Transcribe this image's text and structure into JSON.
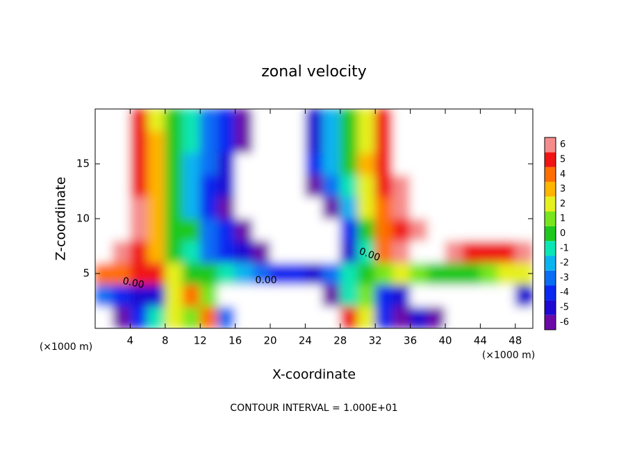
{
  "chart_data": {
    "type": "heatmap",
    "title": "zonal velocity",
    "x_label": "X-coordinate",
    "y_label": "Z-coordinate",
    "x_unit_labels": [
      "(×1000 m)",
      "(×1000 m)"
    ],
    "footnote": "CONTOUR INTERVAL = 1.000E+01",
    "contour_labels": [
      "0.00",
      "0.00",
      "0.00"
    ],
    "xlim": [
      0,
      50
    ],
    "xticks": [
      4,
      8,
      12,
      16,
      20,
      24,
      28,
      32,
      36,
      40,
      44,
      48
    ],
    "ylim": [
      0,
      20
    ],
    "yticks": [
      5,
      10,
      15
    ],
    "x": [
      1,
      3,
      5,
      7,
      9,
      11,
      13,
      15,
      17,
      19,
      21,
      23,
      25,
      27,
      29,
      31,
      33,
      35,
      37,
      39,
      41,
      43,
      45,
      47,
      49
    ],
    "y": [
      1,
      3,
      5,
      7,
      9,
      11,
      13,
      15,
      17,
      19
    ],
    "z": [
      [
        -8,
        -6,
        -4,
        -1,
        2,
        1,
        4,
        -3,
        -8,
        -8,
        -8,
        -8,
        -8,
        -8,
        5,
        2,
        -4,
        -6,
        -5,
        -6,
        -8,
        -8,
        -8,
        -8,
        -8
      ],
      [
        -3,
        -4,
        -5,
        -5,
        2,
        4,
        1,
        -8,
        -8,
        -8,
        -8,
        -8,
        -8,
        -6,
        -1,
        1,
        -4,
        -5,
        -8,
        -8,
        -7,
        -8,
        -8,
        -8,
        -5
      ],
      [
        4,
        4,
        5,
        5,
        2,
        0,
        0,
        -1,
        -2,
        -3,
        -4,
        -4,
        -5,
        -3,
        -1,
        0,
        1,
        2,
        1,
        0,
        0,
        0,
        1,
        2,
        2
      ],
      [
        7,
        6,
        5,
        3,
        0,
        -1,
        -3,
        -4,
        -5,
        -6,
        -8,
        -8,
        -8,
        -8,
        -5,
        -1,
        4,
        6,
        8,
        8,
        6,
        5,
        5,
        5,
        6
      ],
      [
        8,
        8,
        6,
        3,
        0,
        0,
        -3,
        -4,
        -6,
        -8,
        -8,
        -8,
        -8,
        -8,
        -4,
        0,
        4,
        5,
        6,
        7,
        8,
        8,
        8,
        8,
        8
      ],
      [
        8,
        8,
        6,
        3,
        0,
        -2,
        -4,
        -6,
        -8,
        -8,
        -8,
        -8,
        -8,
        -6,
        -2,
        2,
        4,
        6,
        8,
        8,
        8,
        8,
        8,
        8,
        8
      ],
      [
        8,
        8,
        5,
        3,
        0,
        -2,
        -4,
        -5,
        -8,
        -8,
        -8,
        -8,
        -6,
        -3,
        -1,
        2,
        5,
        6,
        8,
        8,
        8,
        8,
        8,
        8,
        8
      ],
      [
        8,
        7,
        5,
        3,
        0,
        -2,
        -3,
        -5,
        -8,
        -8,
        -8,
        -8,
        -4,
        -2,
        0,
        3,
        5,
        7,
        8,
        8,
        8,
        8,
        8,
        8,
        8
      ],
      [
        8,
        7,
        5,
        3,
        0,
        -1,
        -3,
        -4,
        -6,
        -8,
        -8,
        -8,
        -5,
        -2,
        0,
        2,
        5,
        7,
        8,
        8,
        8,
        8,
        8,
        8,
        8
      ],
      [
        8,
        8,
        5,
        2,
        0,
        -1,
        -3,
        -4,
        -6,
        -8,
        -8,
        -8,
        -5,
        -2,
        0,
        2,
        5,
        7,
        8,
        8,
        8,
        8,
        8,
        8,
        8
      ]
    ],
    "colorbar_ticks": [
      -6,
      -5,
      -4,
      -3,
      -2,
      -1,
      0,
      1,
      2,
      3,
      4,
      5,
      6
    ],
    "colors": [
      "#6c0aa8",
      "#1e0ad2",
      "#0a28f0",
      "#0a6ef5",
      "#0ab4f0",
      "#0ae6b4",
      "#1ec81e",
      "#78e61e",
      "#e6f01e",
      "#ffb400",
      "#ff6e00",
      "#f01414",
      "#f58c8c"
    ],
    "out_of_range_color": "#ffffff"
  }
}
